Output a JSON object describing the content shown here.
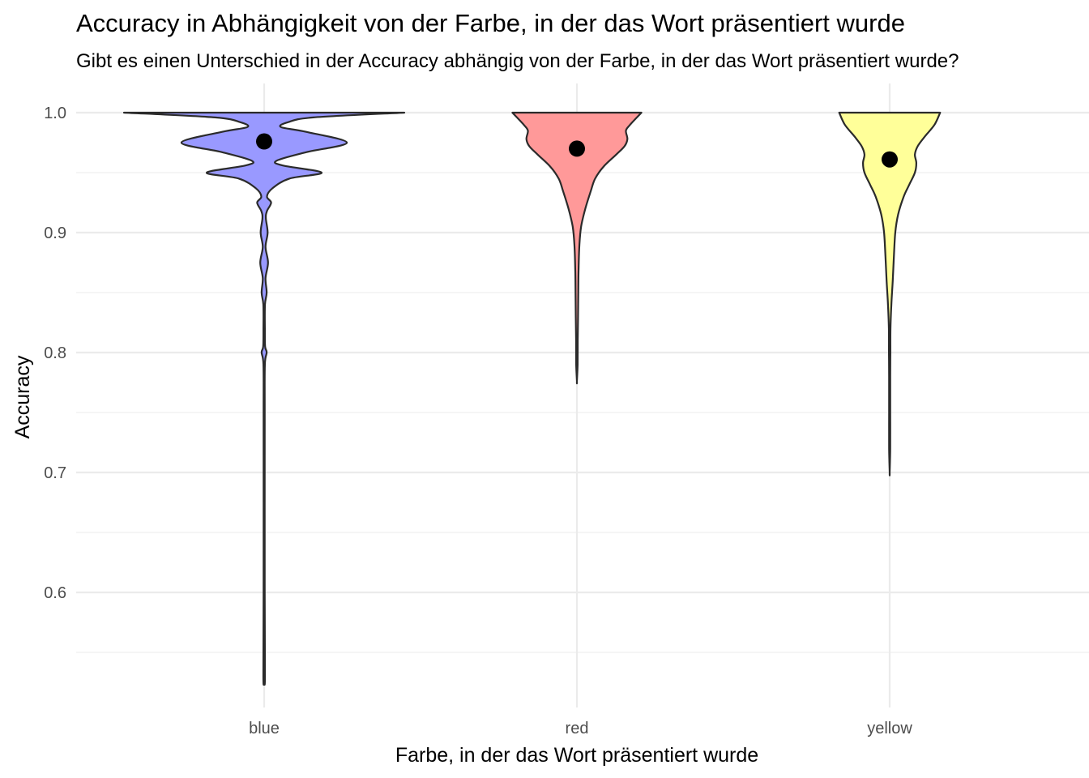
{
  "chart_data": {
    "type": "violin",
    "title": "Accuracy in Abhängigkeit von der Farbe, in der das Wort präsentiert wurde",
    "subtitle": "Gibt es einen Unterschied in der Accuracy abhängig von der Farbe, in der das Wort präsentiert wurde?",
    "xlabel": "Farbe, in der das Wort präsentiert wurde",
    "ylabel": "Accuracy",
    "categories": [
      "blue",
      "red",
      "yellow"
    ],
    "ylim": [
      0.5,
      1.02
    ],
    "y_ticks": [
      0.6,
      0.7,
      0.8,
      0.9,
      1.0
    ],
    "y_tick_labels": [
      "0.6",
      "0.7",
      "0.8",
      "0.9",
      "1.0"
    ],
    "grid": true,
    "legend": "none",
    "series": [
      {
        "category": "blue",
        "fill": "#9999ff",
        "mean": 0.976,
        "min": 0.525,
        "max": 1.0,
        "density": [
          [
            1.0,
            1.0
          ],
          [
            0.996,
            0.35
          ],
          [
            0.992,
            0.17
          ],
          [
            0.988,
            0.12
          ],
          [
            0.984,
            0.3
          ],
          [
            0.975,
            0.59
          ],
          [
            0.967,
            0.3
          ],
          [
            0.96,
            0.09
          ],
          [
            0.956,
            0.13
          ],
          [
            0.95,
            0.41
          ],
          [
            0.945,
            0.18
          ],
          [
            0.937,
            0.06
          ],
          [
            0.93,
            0.02
          ],
          [
            0.925,
            0.05
          ],
          [
            0.918,
            0.02
          ],
          [
            0.912,
            0.012
          ],
          [
            0.9,
            0.025
          ],
          [
            0.888,
            0.01
          ],
          [
            0.875,
            0.028
          ],
          [
            0.862,
            0.01
          ],
          [
            0.85,
            0.018
          ],
          [
            0.84,
            0.006
          ],
          [
            0.82,
            0.005
          ],
          [
            0.805,
            0.007
          ],
          [
            0.8,
            0.018
          ],
          [
            0.79,
            0.005
          ],
          [
            0.75,
            0.004
          ],
          [
            0.6,
            0.004
          ],
          [
            0.53,
            0.006
          ],
          [
            0.525,
            0.0
          ]
        ]
      },
      {
        "category": "red",
        "fill": "#ff9999",
        "mean": 0.97,
        "min": 0.776,
        "max": 1.0,
        "density": [
          [
            1.0,
            0.46
          ],
          [
            0.99,
            0.38
          ],
          [
            0.985,
            0.35
          ],
          [
            0.978,
            0.36
          ],
          [
            0.972,
            0.34
          ],
          [
            0.965,
            0.28
          ],
          [
            0.955,
            0.19
          ],
          [
            0.945,
            0.13
          ],
          [
            0.935,
            0.1
          ],
          [
            0.92,
            0.06
          ],
          [
            0.905,
            0.03
          ],
          [
            0.89,
            0.018
          ],
          [
            0.87,
            0.012
          ],
          [
            0.85,
            0.01
          ],
          [
            0.83,
            0.008
          ],
          [
            0.81,
            0.006
          ],
          [
            0.79,
            0.005
          ],
          [
            0.776,
            0.0
          ]
        ]
      },
      {
        "category": "yellow",
        "fill": "#ffff99",
        "mean": 0.961,
        "min": 0.7,
        "max": 1.0,
        "density": [
          [
            1.0,
            0.36
          ],
          [
            0.99,
            0.32
          ],
          [
            0.98,
            0.25
          ],
          [
            0.972,
            0.2
          ],
          [
            0.965,
            0.18
          ],
          [
            0.958,
            0.19
          ],
          [
            0.95,
            0.18
          ],
          [
            0.94,
            0.14
          ],
          [
            0.93,
            0.1
          ],
          [
            0.915,
            0.06
          ],
          [
            0.9,
            0.04
          ],
          [
            0.88,
            0.03
          ],
          [
            0.86,
            0.022
          ],
          [
            0.84,
            0.012
          ],
          [
            0.82,
            0.006
          ],
          [
            0.8,
            0.005
          ],
          [
            0.78,
            0.004
          ],
          [
            0.75,
            0.004
          ],
          [
            0.72,
            0.004
          ],
          [
            0.7,
            0.0
          ]
        ]
      }
    ]
  }
}
